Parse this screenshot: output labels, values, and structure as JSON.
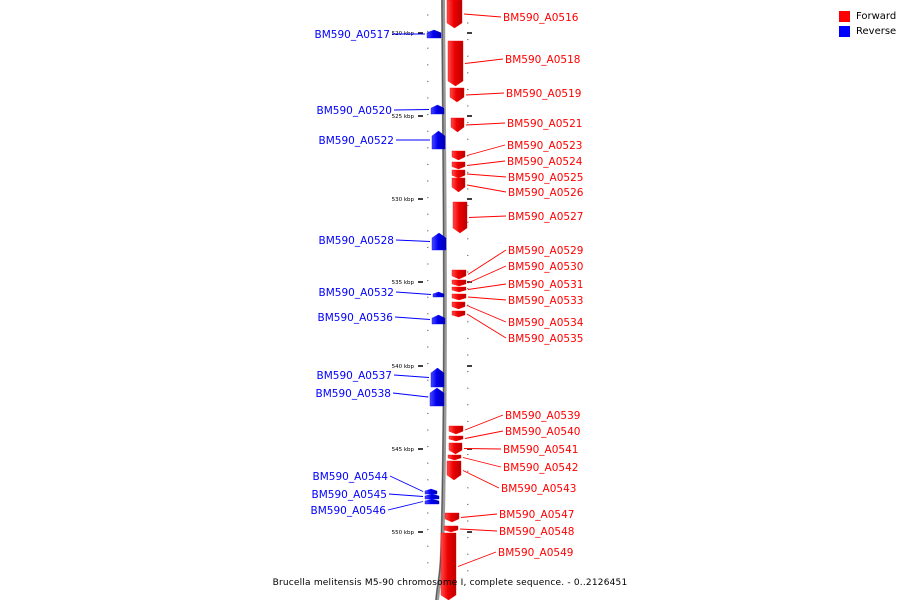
{
  "legend": {
    "forward_label": "Forward",
    "reverse_label": "Reverse",
    "forward_color": "#ff0000",
    "reverse_color": "#0000ff"
  },
  "caption": "Brucella melitensis M5-90 chromosome I, complete sequence. - 0..2126451",
  "ruler": {
    "unit": "kbp",
    "ticks": [
      520,
      525,
      530,
      535,
      540,
      545,
      550
    ]
  },
  "genes": [
    {
      "id": "BM590_A0516",
      "strand": "forward"
    },
    {
      "id": "BM590_A0517",
      "strand": "reverse"
    },
    {
      "id": "BM590_A0518",
      "strand": "forward"
    },
    {
      "id": "BM590_A0519",
      "strand": "forward"
    },
    {
      "id": "BM590_A0520",
      "strand": "reverse"
    },
    {
      "id": "BM590_A0521",
      "strand": "forward"
    },
    {
      "id": "BM590_A0522",
      "strand": "reverse"
    },
    {
      "id": "BM590_A0523",
      "strand": "forward"
    },
    {
      "id": "BM590_A0524",
      "strand": "forward"
    },
    {
      "id": "BM590_A0525",
      "strand": "forward"
    },
    {
      "id": "BM590_A0526",
      "strand": "forward"
    },
    {
      "id": "BM590_A0527",
      "strand": "forward"
    },
    {
      "id": "BM590_A0528",
      "strand": "reverse"
    },
    {
      "id": "BM590_A0529",
      "strand": "forward"
    },
    {
      "id": "BM590_A0530",
      "strand": "forward"
    },
    {
      "id": "BM590_A0531",
      "strand": "forward"
    },
    {
      "id": "BM590_A0532",
      "strand": "reverse"
    },
    {
      "id": "BM590_A0533",
      "strand": "forward"
    },
    {
      "id": "BM590_A0534",
      "strand": "forward"
    },
    {
      "id": "BM590_A0535",
      "strand": "forward"
    },
    {
      "id": "BM590_A0536",
      "strand": "reverse"
    },
    {
      "id": "BM590_A0537",
      "strand": "reverse"
    },
    {
      "id": "BM590_A0538",
      "strand": "reverse"
    },
    {
      "id": "BM590_A0539",
      "strand": "forward"
    },
    {
      "id": "BM590_A0540",
      "strand": "forward"
    },
    {
      "id": "BM590_A0541",
      "strand": "forward"
    },
    {
      "id": "BM590_A0542",
      "strand": "forward"
    },
    {
      "id": "BM590_A0543",
      "strand": "forward"
    },
    {
      "id": "BM590_A0544",
      "strand": "reverse"
    },
    {
      "id": "BM590_A0545",
      "strand": "reverse"
    },
    {
      "id": "BM590_A0546",
      "strand": "reverse"
    },
    {
      "id": "BM590_A0547",
      "strand": "forward"
    },
    {
      "id": "BM590_A0548",
      "strand": "forward"
    },
    {
      "id": "BM590_A0549",
      "strand": "forward"
    }
  ]
}
